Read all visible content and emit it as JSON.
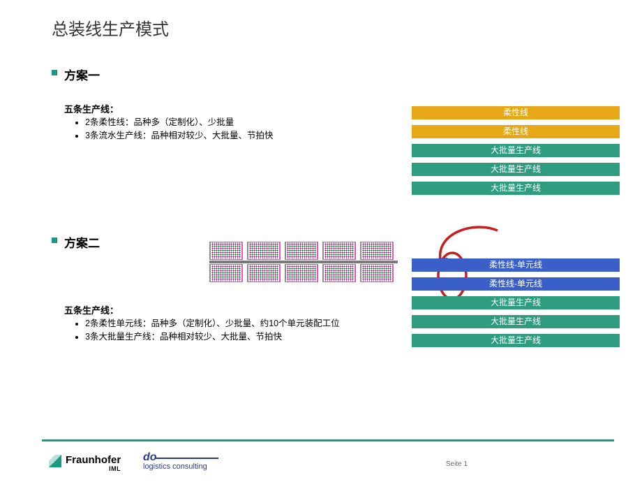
{
  "slide": {
    "title": "总装线生产模式",
    "colors": {
      "accent": "#179b84",
      "flex": "#e6a817",
      "mass": "#2f9c80",
      "unit": "#3a5fc8",
      "arrow": "#c41e1e"
    }
  },
  "plan1": {
    "heading": "方案一",
    "subhead": "五条生产线：",
    "bullets": [
      "2条柔性线：品种多（定制化）、少批量",
      "3条流水生产线：品种相对较少、大批量、节拍快"
    ],
    "bars": [
      {
        "label": "柔性线",
        "colorKey": "flex"
      },
      {
        "label": "柔性线",
        "colorKey": "flex"
      },
      {
        "label": "大批量生产线",
        "colorKey": "mass"
      },
      {
        "label": "大批量生产线",
        "colorKey": "mass"
      },
      {
        "label": "大批量生产线",
        "colorKey": "mass"
      }
    ]
  },
  "plan2": {
    "heading": "方案二",
    "subhead": "五条生产线：",
    "bullets": [
      "2条柔性单元线：品种多（定制化）、少批量、约10个单元装配工位",
      "3条大批量生产线：品种相对较少、大批量、节拍快"
    ],
    "bars": [
      {
        "label": "柔性线-单元线",
        "colorKey": "unit"
      },
      {
        "label": "柔性线-单元线",
        "colorKey": "unit"
      },
      {
        "label": "大批量生产线",
        "colorKey": "mass"
      },
      {
        "label": "大批量生产线",
        "colorKey": "mass"
      },
      {
        "label": "大批量生产线",
        "colorKey": "mass"
      }
    ],
    "cluster": {
      "rows": 2,
      "cells_per_row": 5,
      "cell_spacing": 54
    }
  },
  "footer": {
    "logo1_main": "Fraunhofer",
    "logo1_sub": "IML",
    "logo2_main": "do",
    "logo2_sub": "logistics consulting",
    "page_label": "Seite 1"
  }
}
